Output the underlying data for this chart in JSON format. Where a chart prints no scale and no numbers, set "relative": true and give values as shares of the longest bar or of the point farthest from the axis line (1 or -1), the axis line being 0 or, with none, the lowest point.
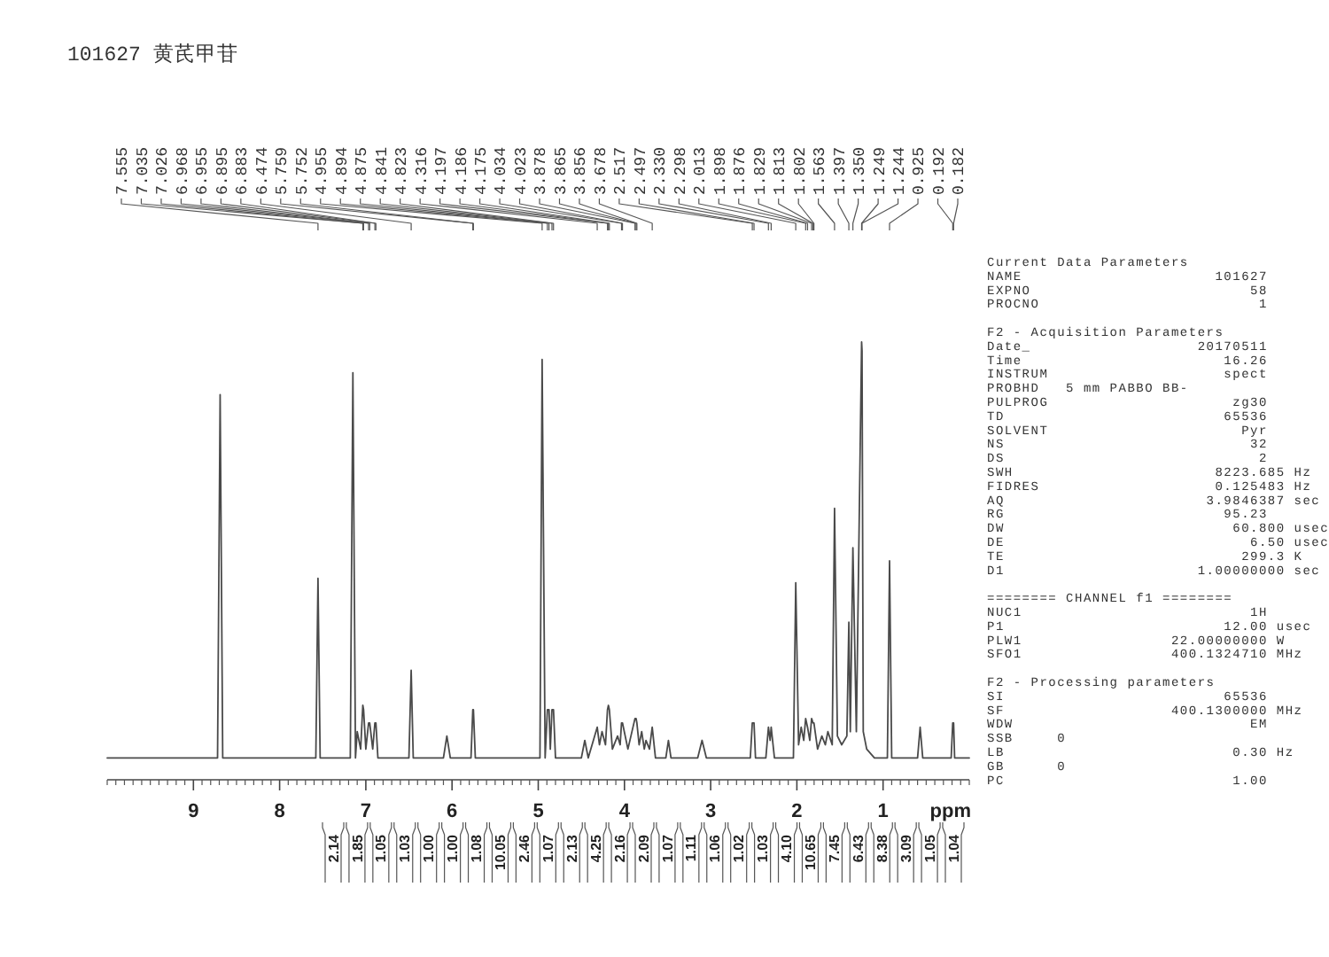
{
  "chart_data": [
    {
      "type": "line",
      "title": "101627 黄芪甲苷",
      "xlabel": "ppm",
      "relative": true,
      "color": "#4a4a4a",
      "xlim": [
        10,
        0
      ],
      "xticks": [
        9,
        8,
        7,
        6,
        5,
        4,
        3,
        2,
        1
      ],
      "x": [
        10,
        8.72,
        8.69,
        8.66,
        7.58,
        7.555,
        7.53,
        7.18,
        7.15,
        7.12,
        7.1,
        7.06,
        7.035,
        7.026,
        7,
        6.968,
        6.955,
        6.92,
        6.895,
        6.883,
        6.86,
        6.5,
        6.474,
        6.45,
        6.1,
        6.06,
        6.02,
        5.78,
        5.759,
        5.752,
        5.73,
        4.98,
        4.955,
        4.92,
        4.894,
        4.875,
        4.86,
        4.841,
        4.823,
        4.8,
        4.5,
        4.46,
        4.42,
        4.316,
        4.29,
        4.26,
        4.22,
        4.197,
        4.186,
        4.175,
        4.14,
        4.08,
        4.05,
        4.034,
        4.023,
        3.96,
        3.878,
        3.865,
        3.856,
        3.83,
        3.8,
        3.77,
        3.75,
        3.71,
        3.678,
        3.64,
        3.52,
        3.49,
        3.46,
        3.15,
        3.1,
        3.05,
        2.54,
        2.517,
        2.497,
        2.48,
        2.36,
        2.33,
        2.31,
        2.298,
        2.26,
        2.04,
        2.013,
        1.98,
        1.95,
        1.92,
        1.898,
        1.876,
        1.85,
        1.829,
        1.813,
        1.802,
        1.76,
        1.71,
        1.67,
        1.64,
        1.59,
        1.563,
        1.53,
        1.48,
        1.42,
        1.397,
        1.38,
        1.35,
        1.31,
        1.249,
        1.244,
        1.23,
        1.19,
        1.1,
        0.95,
        0.925,
        0.9,
        0.6,
        0.57,
        0.54,
        0.21,
        0.192,
        0.182,
        0.17,
        0
      ],
      "values": [
        0.05,
        0.05,
        0.88,
        0.05,
        0.05,
        0.46,
        0.05,
        0.05,
        0.93,
        0.05,
        0.11,
        0.07,
        0.17,
        0.16,
        0.07,
        0.13,
        0.13,
        0.07,
        0.13,
        0.13,
        0.05,
        0.05,
        0.25,
        0.05,
        0.05,
        0.1,
        0.05,
        0.05,
        0.16,
        0.16,
        0.05,
        0.05,
        0.96,
        0.05,
        0.16,
        0.16,
        0.07,
        0.16,
        0.16,
        0.05,
        0.05,
        0.09,
        0.05,
        0.12,
        0.08,
        0.11,
        0.08,
        0.16,
        0.17,
        0.16,
        0.07,
        0.1,
        0.08,
        0.13,
        0.13,
        0.07,
        0.14,
        0.14,
        0.13,
        0.08,
        0.11,
        0.07,
        0.09,
        0.07,
        0.12,
        0.05,
        0.05,
        0.09,
        0.05,
        0.05,
        0.09,
        0.05,
        0.05,
        0.13,
        0.13,
        0.05,
        0.05,
        0.12,
        0.09,
        0.12,
        0.05,
        0.05,
        0.45,
        0.08,
        0.12,
        0.09,
        0.14,
        0.12,
        0.09,
        0.14,
        0.13,
        0.13,
        0.07,
        0.1,
        0.08,
        0.11,
        0.08,
        0.62,
        0.1,
        0.08,
        0.1,
        0.36,
        0.11,
        0.53,
        0.11,
        1,
        0.98,
        0.11,
        0.07,
        0.05,
        0.05,
        0.5,
        0.05,
        0.05,
        0.12,
        0.05,
        0.05,
        0.13,
        0.13,
        0.05,
        0.05
      ],
      "annotations": [
        {
          "text": "7.555",
          "x": 7.555
        },
        {
          "text": "7.035",
          "x": 7.035
        },
        {
          "text": "7.026",
          "x": 7.026
        },
        {
          "text": "6.968",
          "x": 6.968
        },
        {
          "text": "6.955",
          "x": 6.955
        },
        {
          "text": "6.895",
          "x": 6.895
        },
        {
          "text": "6.883",
          "x": 6.883
        },
        {
          "text": "6.474",
          "x": 6.474
        },
        {
          "text": "5.759",
          "x": 5.759
        },
        {
          "text": "5.752",
          "x": 5.752
        },
        {
          "text": "4.955",
          "x": 4.955
        },
        {
          "text": "4.894",
          "x": 4.894
        },
        {
          "text": "4.875",
          "x": 4.875
        },
        {
          "text": "4.841",
          "x": 4.841
        },
        {
          "text": "4.823",
          "x": 4.823
        },
        {
          "text": "4.316",
          "x": 4.316
        },
        {
          "text": "4.197",
          "x": 4.197
        },
        {
          "text": "4.186",
          "x": 4.186
        },
        {
          "text": "4.175",
          "x": 4.175
        },
        {
          "text": "4.034",
          "x": 4.034
        },
        {
          "text": "4.023",
          "x": 4.023
        },
        {
          "text": "3.878",
          "x": 3.878
        },
        {
          "text": "3.865",
          "x": 3.865
        },
        {
          "text": "3.856",
          "x": 3.856
        },
        {
          "text": "3.678",
          "x": 3.678
        },
        {
          "text": "2.517",
          "x": 2.517
        },
        {
          "text": "2.497",
          "x": 2.497
        },
        {
          "text": "2.330",
          "x": 2.33
        },
        {
          "text": "2.298",
          "x": 2.298
        },
        {
          "text": "2.013",
          "x": 2.013
        },
        {
          "text": "1.898",
          "x": 1.898
        },
        {
          "text": "1.876",
          "x": 1.876
        },
        {
          "text": "1.829",
          "x": 1.829
        },
        {
          "text": "1.813",
          "x": 1.813
        },
        {
          "text": "1.802",
          "x": 1.802
        },
        {
          "text": "1.563",
          "x": 1.563
        },
        {
          "text": "1.397",
          "x": 1.397
        },
        {
          "text": "1.350",
          "x": 1.35
        },
        {
          "text": "1.249",
          "x": 1.249
        },
        {
          "text": "1.244",
          "x": 1.244
        },
        {
          "text": "0.925",
          "x": 0.925
        },
        {
          "text": "0.192",
          "x": 0.192
        },
        {
          "text": "0.182",
          "x": 0.182
        },
        "2.14",
        "1.85",
        "1.05",
        "1.03",
        "1.00",
        "1.00",
        "1.08",
        "10.05",
        "2.46",
        "1.07",
        "2.13",
        "4.25",
        "2.16",
        "2.09",
        "1.07",
        "1.11",
        "1.06",
        "1.02",
        "1.03",
        "4.10",
        "10.65",
        "7.45",
        "6.43",
        "8.38",
        "3.09",
        "1.05",
        "1.04"
      ]
    },
    {
      "type": "other",
      "title": "Current Data Parameters",
      "annotations": [
        "NAME                      101627",
        "EXPNO                         58",
        "PROCNO                         1"
      ]
    },
    {
      "type": "other",
      "title": "F2 - Acquisition Parameters",
      "annotations": [
        "Date_                   20170511",
        "Time                       16.26",
        "INSTRUM                    spect",
        "PROBHD   5 mm PABBO BB-",
        "PULPROG                     zg30",
        "TD                         65536",
        "SOLVENT                      Pyr",
        "NS                            32",
        "DS                             2",
        "SWH                       8223.685 Hz",
        "FIDRES                    0.125483 Hz",
        "AQ                       3.9846387 sec",
        "RG                         95.23",
        "DW                          60.800 usec",
        "DE                            6.50 usec",
        "TE                           299.3 K",
        "D1                      1.00000000 sec"
      ]
    },
    {
      "type": "other",
      "title": "======== CHANNEL f1 ========",
      "annotations": [
        "NUC1                          1H",
        "P1                         12.00 usec",
        "PLW1                 22.00000000 W",
        "SFO1                 400.1324710 MHz"
      ]
    },
    {
      "type": "other",
      "title": "F2 - Processing parameters",
      "annotations": [
        "SI                         65536",
        "SF                   400.1300000 MHz",
        "WDW                           EM",
        "SSB     0",
        "LB                          0.30 Hz",
        "GB      0",
        "PC                          1.00"
      ]
    }
  ]
}
